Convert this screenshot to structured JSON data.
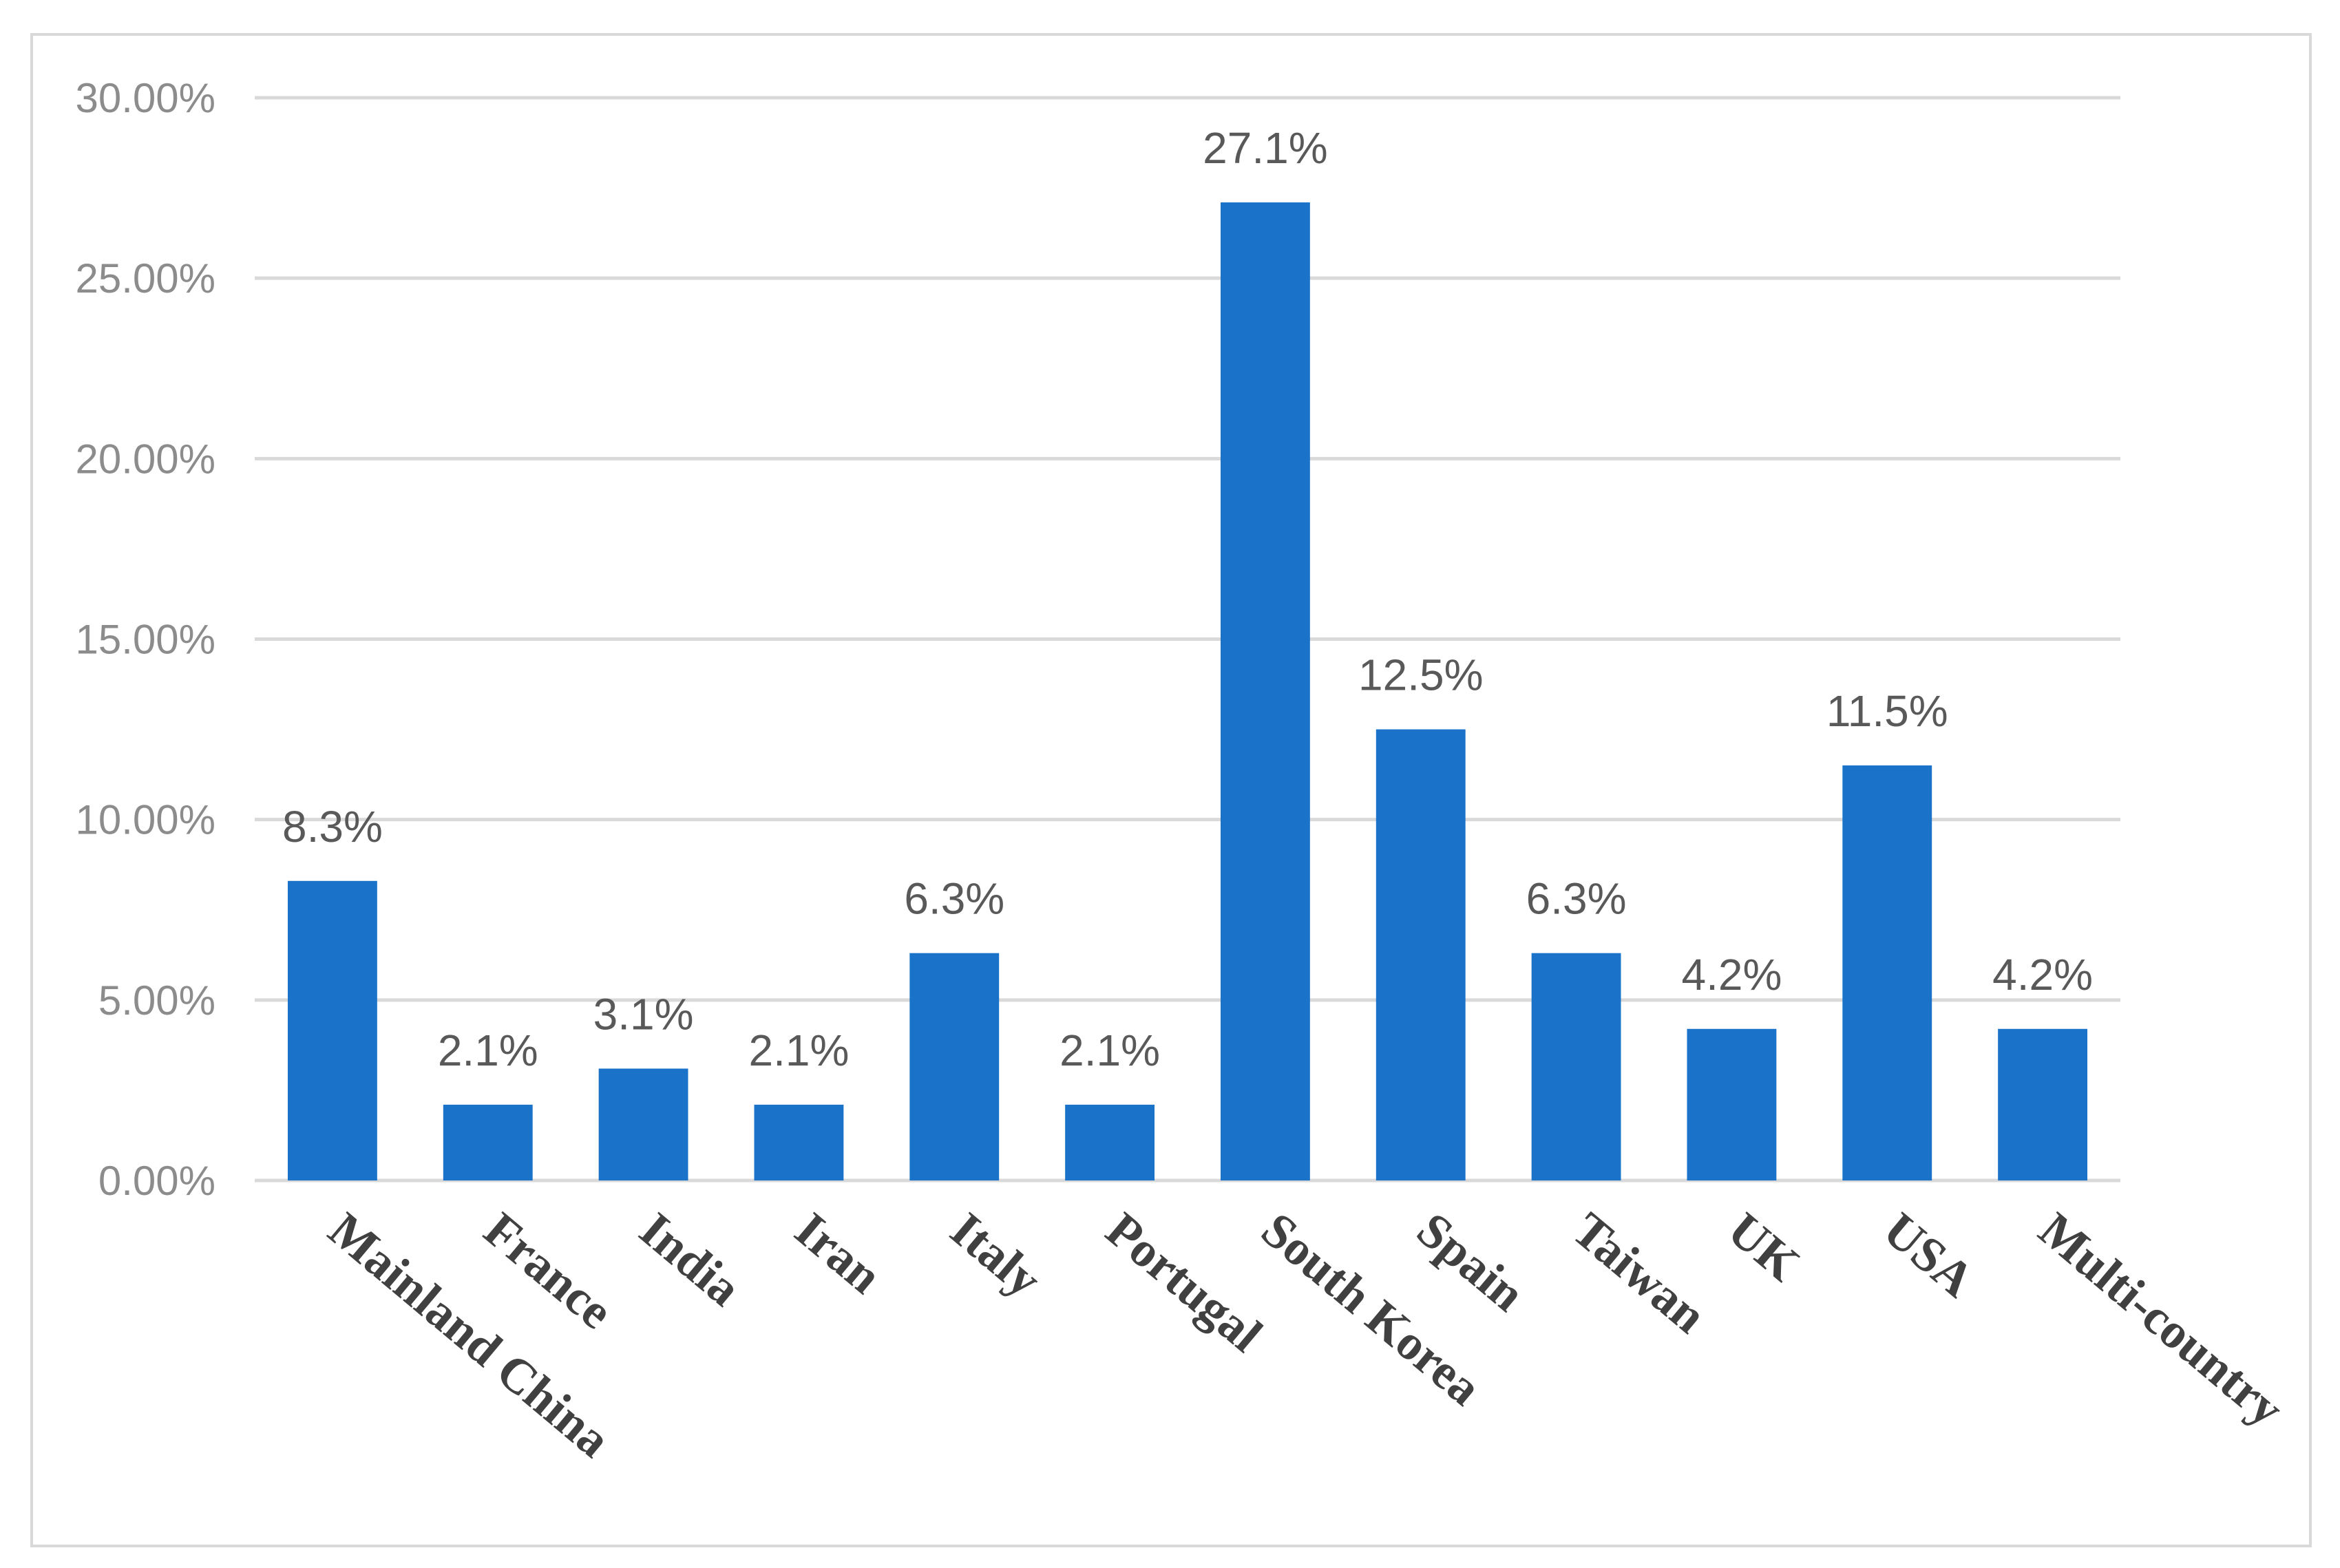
{
  "chart_data": {
    "type": "bar",
    "title": "",
    "xlabel": "",
    "ylabel": "",
    "categories": [
      "Mainland China",
      "France",
      "India",
      "Iran",
      "Italy",
      "Portugal",
      "South Korea",
      "Spain",
      "Taiwan",
      "UK",
      "USA",
      "Multi-country"
    ],
    "values": [
      8.3,
      2.1,
      3.1,
      2.1,
      6.3,
      2.1,
      27.1,
      12.5,
      6.3,
      4.2,
      11.5,
      4.2
    ],
    "data_labels": [
      "8.3%",
      "2.1%",
      "3.1%",
      "2.1%",
      "6.3%",
      "2.1%",
      "27.1%",
      "12.5%",
      "6.3%",
      "4.2%",
      "11.5%",
      "4.2%"
    ],
    "y_ticks": [
      0,
      5,
      10,
      15,
      20,
      25,
      30
    ],
    "y_tick_labels": [
      "0.00%",
      "5.00%",
      "10.00%",
      "15.00%",
      "20.00%",
      "25.00%",
      "30.00%"
    ],
    "ylim": [
      0,
      30
    ],
    "grid": true,
    "legend": "none",
    "colors": {
      "bar": "#1a73c8",
      "grid": "#d9d9d9",
      "frame": "#d9d9d9"
    }
  }
}
